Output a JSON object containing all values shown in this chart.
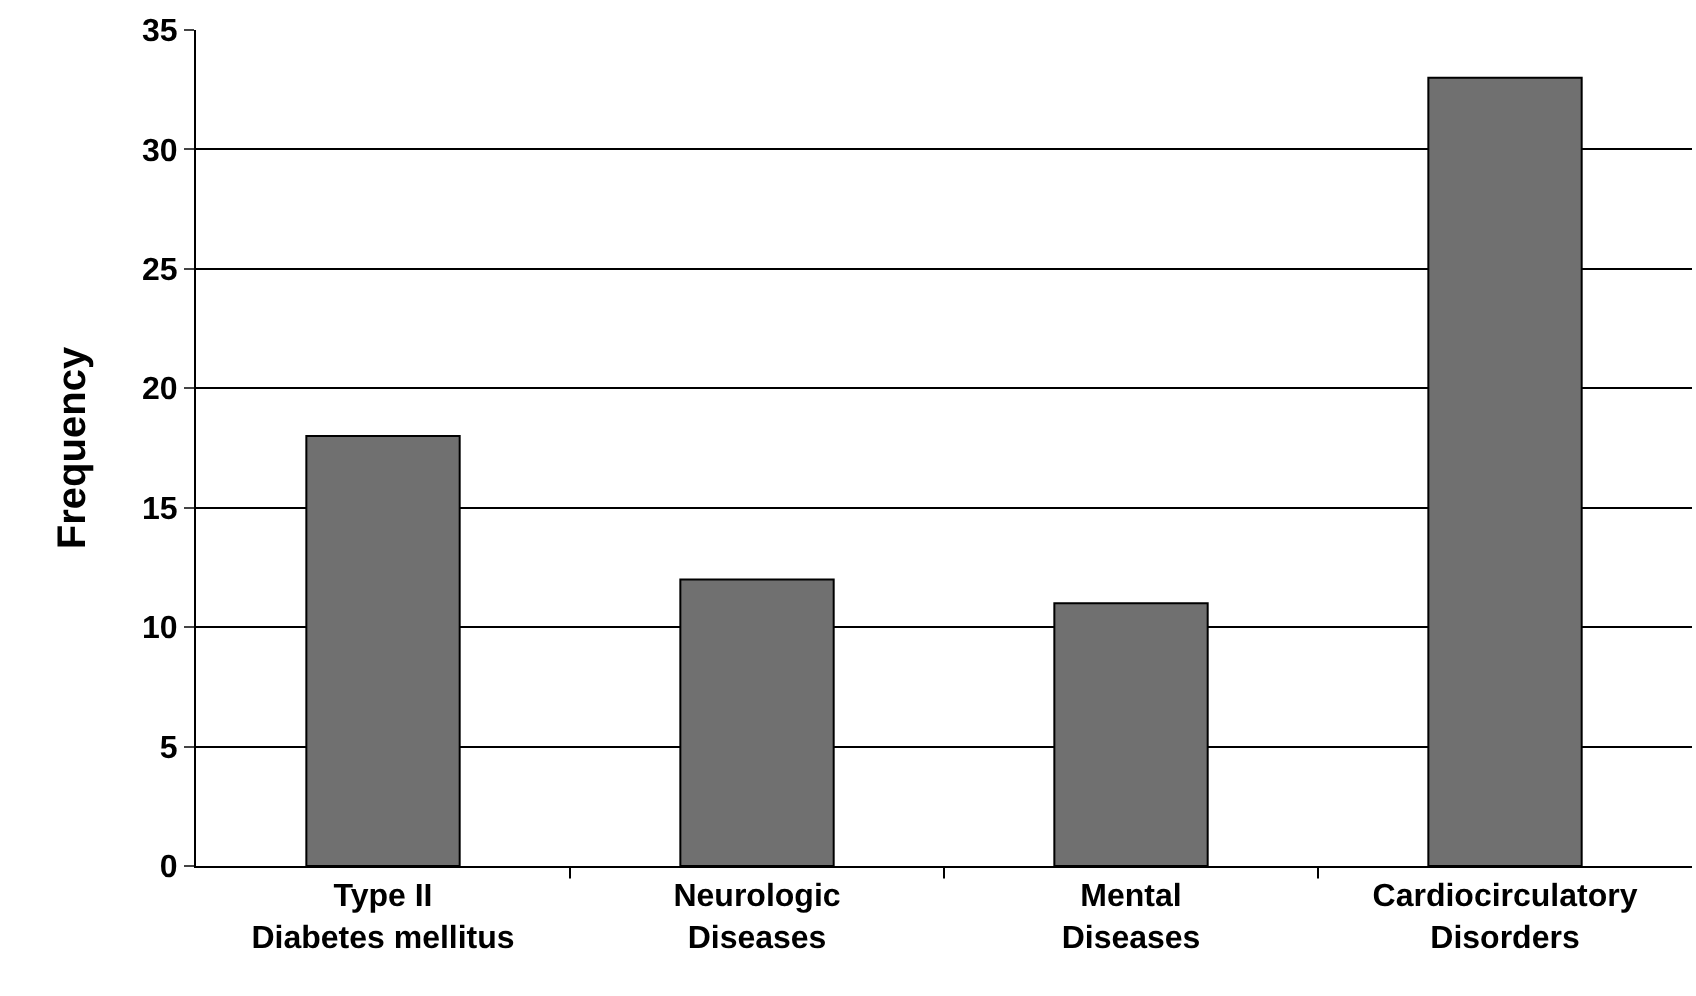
{
  "chart_data": {
    "type": "bar",
    "ylabel": "Frequency",
    "categories": [
      "Type II\nDiabetes mellitus",
      "Neurologic\nDiseases",
      "Mental\nDiseases",
      "Cardiocirculatory\nDisorders"
    ],
    "values": [
      18,
      12,
      11,
      33
    ],
    "color": "#707070",
    "ylim": [
      0,
      35
    ],
    "yticks": [
      0,
      5,
      10,
      15,
      20,
      25,
      30,
      35
    ],
    "grid": "y",
    "legend": false
  }
}
